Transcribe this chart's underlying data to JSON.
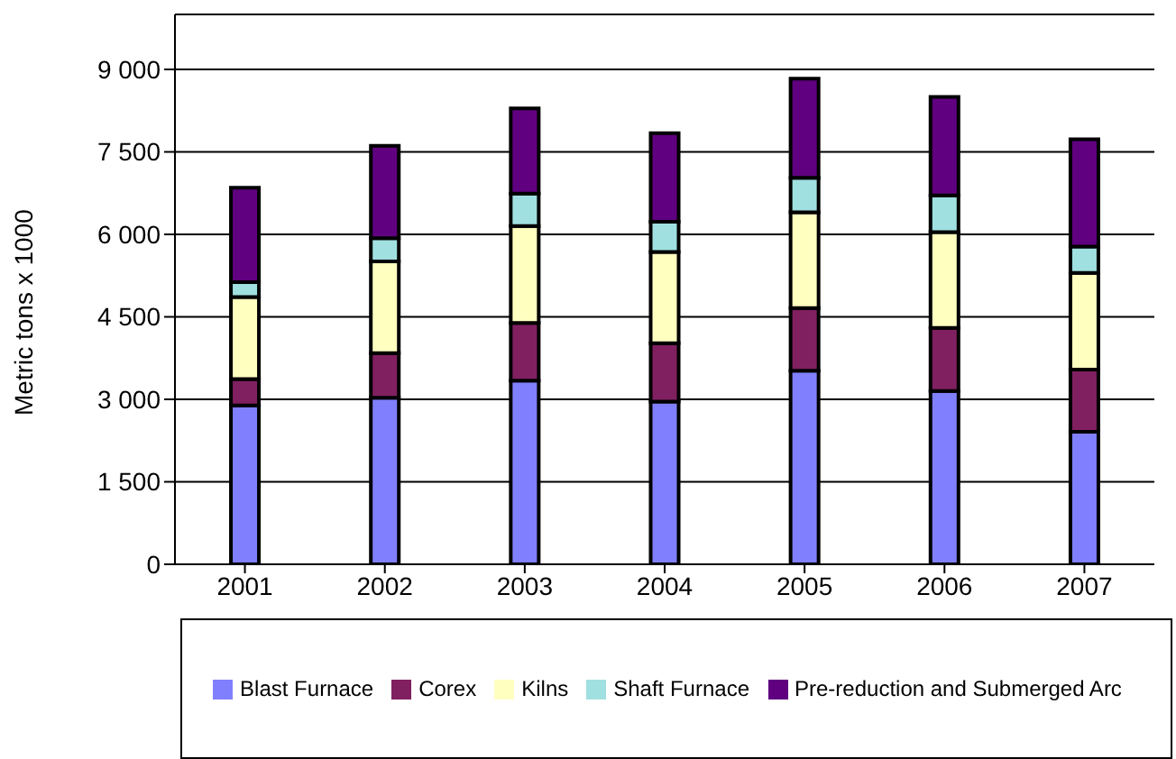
{
  "chart_data": {
    "type": "bar",
    "stacked": true,
    "ylabel": "Metric tons x 1000",
    "categories": [
      "2001",
      "2002",
      "2003",
      "2004",
      "2005",
      "2006",
      "2007"
    ],
    "series": [
      {
        "name": "Blast Furnace",
        "color": "#8080ff",
        "values": [
          2890,
          3030,
          3340,
          2960,
          3520,
          3150,
          2410
        ]
      },
      {
        "name": "Corex",
        "color": "#802060",
        "values": [
          480,
          810,
          1050,
          1060,
          1140,
          1150,
          1130
        ]
      },
      {
        "name": "Kilns",
        "color": "#ffffc0",
        "values": [
          1490,
          1670,
          1760,
          1660,
          1740,
          1740,
          1760
        ]
      },
      {
        "name": "Shaft Furnace",
        "color": "#a0e0e0",
        "values": [
          270,
          420,
          590,
          550,
          630,
          670,
          480
        ]
      },
      {
        "name": "Pre-reduction and Submerged Arc",
        "color": "#600080",
        "values": [
          1720,
          1680,
          1550,
          1610,
          1800,
          1790,
          1950
        ]
      }
    ],
    "ylim": [
      0,
      10000
    ],
    "yticks": [
      0,
      {
        "value": 1500,
        "label": "1 500"
      },
      {
        "value": 3000,
        "label": "3 000"
      },
      {
        "value": 4500,
        "label": "4 500"
      },
      {
        "value": 6000,
        "label": "6 000"
      },
      {
        "value": 7500,
        "label": "7 500"
      },
      {
        "value": 9000,
        "label": "9 000"
      }
    ],
    "grid": "y",
    "legend": "bottom"
  }
}
